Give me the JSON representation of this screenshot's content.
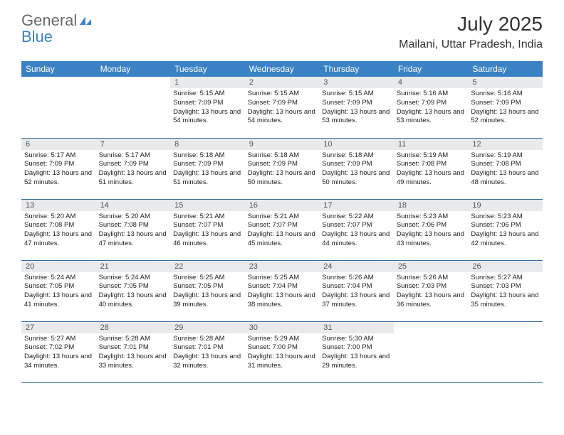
{
  "logo": {
    "text_general": "General",
    "text_blue": "Blue"
  },
  "title": "July 2025",
  "location": "Mailani, Uttar Pradesh, India",
  "colors": {
    "header_bg": "#3b82c4",
    "header_text": "#ffffff",
    "daynum_bg": "#e8eaec",
    "border": "#3b6fa0",
    "logo_gray": "#6b6b6b",
    "logo_blue": "#3b82c4"
  },
  "weekdays": [
    "Sunday",
    "Monday",
    "Tuesday",
    "Wednesday",
    "Thursday",
    "Friday",
    "Saturday"
  ],
  "weeks": [
    [
      null,
      null,
      {
        "n": "1",
        "sr": "5:15 AM",
        "ss": "7:09 PM",
        "dl": "13 hours and 54 minutes."
      },
      {
        "n": "2",
        "sr": "5:15 AM",
        "ss": "7:09 PM",
        "dl": "13 hours and 54 minutes."
      },
      {
        "n": "3",
        "sr": "5:15 AM",
        "ss": "7:09 PM",
        "dl": "13 hours and 53 minutes."
      },
      {
        "n": "4",
        "sr": "5:16 AM",
        "ss": "7:09 PM",
        "dl": "13 hours and 53 minutes."
      },
      {
        "n": "5",
        "sr": "5:16 AM",
        "ss": "7:09 PM",
        "dl": "13 hours and 52 minutes."
      }
    ],
    [
      {
        "n": "6",
        "sr": "5:17 AM",
        "ss": "7:09 PM",
        "dl": "13 hours and 52 minutes."
      },
      {
        "n": "7",
        "sr": "5:17 AM",
        "ss": "7:09 PM",
        "dl": "13 hours and 51 minutes."
      },
      {
        "n": "8",
        "sr": "5:18 AM",
        "ss": "7:09 PM",
        "dl": "13 hours and 51 minutes."
      },
      {
        "n": "9",
        "sr": "5:18 AM",
        "ss": "7:09 PM",
        "dl": "13 hours and 50 minutes."
      },
      {
        "n": "10",
        "sr": "5:18 AM",
        "ss": "7:09 PM",
        "dl": "13 hours and 50 minutes."
      },
      {
        "n": "11",
        "sr": "5:19 AM",
        "ss": "7:08 PM",
        "dl": "13 hours and 49 minutes."
      },
      {
        "n": "12",
        "sr": "5:19 AM",
        "ss": "7:08 PM",
        "dl": "13 hours and 48 minutes."
      }
    ],
    [
      {
        "n": "13",
        "sr": "5:20 AM",
        "ss": "7:08 PM",
        "dl": "13 hours and 47 minutes."
      },
      {
        "n": "14",
        "sr": "5:20 AM",
        "ss": "7:08 PM",
        "dl": "13 hours and 47 minutes."
      },
      {
        "n": "15",
        "sr": "5:21 AM",
        "ss": "7:07 PM",
        "dl": "13 hours and 46 minutes."
      },
      {
        "n": "16",
        "sr": "5:21 AM",
        "ss": "7:07 PM",
        "dl": "13 hours and 45 minutes."
      },
      {
        "n": "17",
        "sr": "5:22 AM",
        "ss": "7:07 PM",
        "dl": "13 hours and 44 minutes."
      },
      {
        "n": "18",
        "sr": "5:23 AM",
        "ss": "7:06 PM",
        "dl": "13 hours and 43 minutes."
      },
      {
        "n": "19",
        "sr": "5:23 AM",
        "ss": "7:06 PM",
        "dl": "13 hours and 42 minutes."
      }
    ],
    [
      {
        "n": "20",
        "sr": "5:24 AM",
        "ss": "7:05 PM",
        "dl": "13 hours and 41 minutes."
      },
      {
        "n": "21",
        "sr": "5:24 AM",
        "ss": "7:05 PM",
        "dl": "13 hours and 40 minutes."
      },
      {
        "n": "22",
        "sr": "5:25 AM",
        "ss": "7:05 PM",
        "dl": "13 hours and 39 minutes."
      },
      {
        "n": "23",
        "sr": "5:25 AM",
        "ss": "7:04 PM",
        "dl": "13 hours and 38 minutes."
      },
      {
        "n": "24",
        "sr": "5:26 AM",
        "ss": "7:04 PM",
        "dl": "13 hours and 37 minutes."
      },
      {
        "n": "25",
        "sr": "5:26 AM",
        "ss": "7:03 PM",
        "dl": "13 hours and 36 minutes."
      },
      {
        "n": "26",
        "sr": "5:27 AM",
        "ss": "7:03 PM",
        "dl": "13 hours and 35 minutes."
      }
    ],
    [
      {
        "n": "27",
        "sr": "5:27 AM",
        "ss": "7:02 PM",
        "dl": "13 hours and 34 minutes."
      },
      {
        "n": "28",
        "sr": "5:28 AM",
        "ss": "7:01 PM",
        "dl": "13 hours and 33 minutes."
      },
      {
        "n": "29",
        "sr": "5:28 AM",
        "ss": "7:01 PM",
        "dl": "13 hours and 32 minutes."
      },
      {
        "n": "30",
        "sr": "5:29 AM",
        "ss": "7:00 PM",
        "dl": "13 hours and 31 minutes."
      },
      {
        "n": "31",
        "sr": "5:30 AM",
        "ss": "7:00 PM",
        "dl": "13 hours and 29 minutes."
      },
      null,
      null
    ]
  ],
  "labels": {
    "sunrise": "Sunrise:",
    "sunset": "Sunset:",
    "daylight": "Daylight:"
  }
}
